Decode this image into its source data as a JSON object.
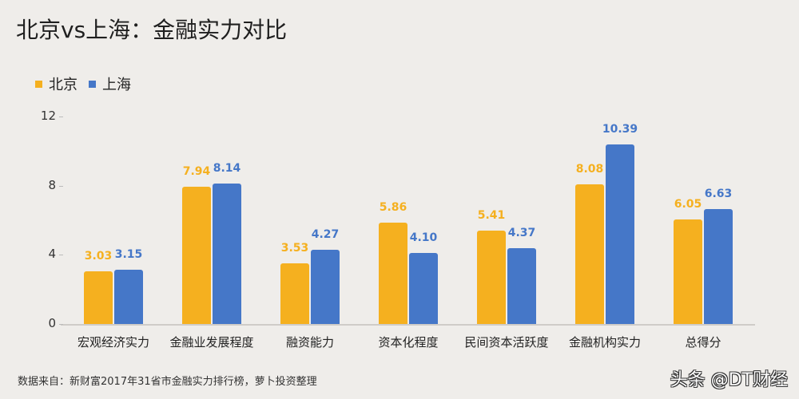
{
  "title": "北京vs上海：金融实力对比",
  "legend": [
    {
      "label": "北京",
      "color": "#f5b01f"
    },
    {
      "label": "上海",
      "color": "#4577c8"
    }
  ],
  "source": "数据来自：新财富2017年31省市金融实力排行榜，萝卜投资整理",
  "watermark": "头条 @DT财经",
  "chart_data": {
    "type": "bar",
    "title": "北京vs上海：金融实力对比",
    "xlabel": "",
    "ylabel": "",
    "ylim": [
      0,
      12
    ],
    "yticks": [
      "0",
      "4",
      "8",
      "12"
    ],
    "grid": false,
    "legend_position": "top-left",
    "categories": [
      "宏观经济实力",
      "金融业发展程度",
      "融资能力",
      "资本化程度",
      "民间资本活跃度",
      "金融机构实力",
      "总得分"
    ],
    "series": [
      {
        "name": "北京",
        "color": "#f5b01f",
        "values": [
          3.03,
          7.94,
          3.53,
          5.86,
          5.41,
          8.08,
          6.05
        ],
        "labels": [
          "3.03",
          "7.94",
          "3.53",
          "5.86",
          "5.41",
          "8.08",
          "6.05"
        ]
      },
      {
        "name": "上海",
        "color": "#4577c8",
        "values": [
          3.15,
          8.14,
          4.27,
          4.1,
          4.37,
          10.39,
          6.63
        ],
        "labels": [
          "3.15",
          "8.14",
          "4.27",
          "4.10",
          "4.37",
          "10.39",
          "6.63"
        ]
      }
    ]
  }
}
